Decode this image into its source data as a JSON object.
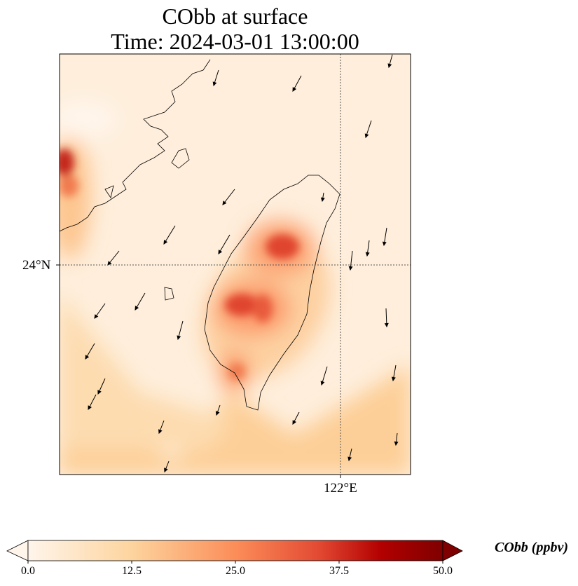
{
  "title": {
    "line1": "CObb at surface",
    "line2": "Time: 2024-03-01 13:00:00"
  },
  "axes": {
    "lat_label": "24°N",
    "lon_label": "122°E"
  },
  "colorbar": {
    "label": "CObb (ppbv)",
    "ticks": [
      "0.0",
      "12.5",
      "25.0",
      "37.5",
      "50.0"
    ],
    "min": 0,
    "max": 50,
    "colors": [
      "#fff5eb",
      "#fdd49e",
      "#fc8d59",
      "#e34a33",
      "#b30000",
      "#7f0000"
    ]
  }
}
